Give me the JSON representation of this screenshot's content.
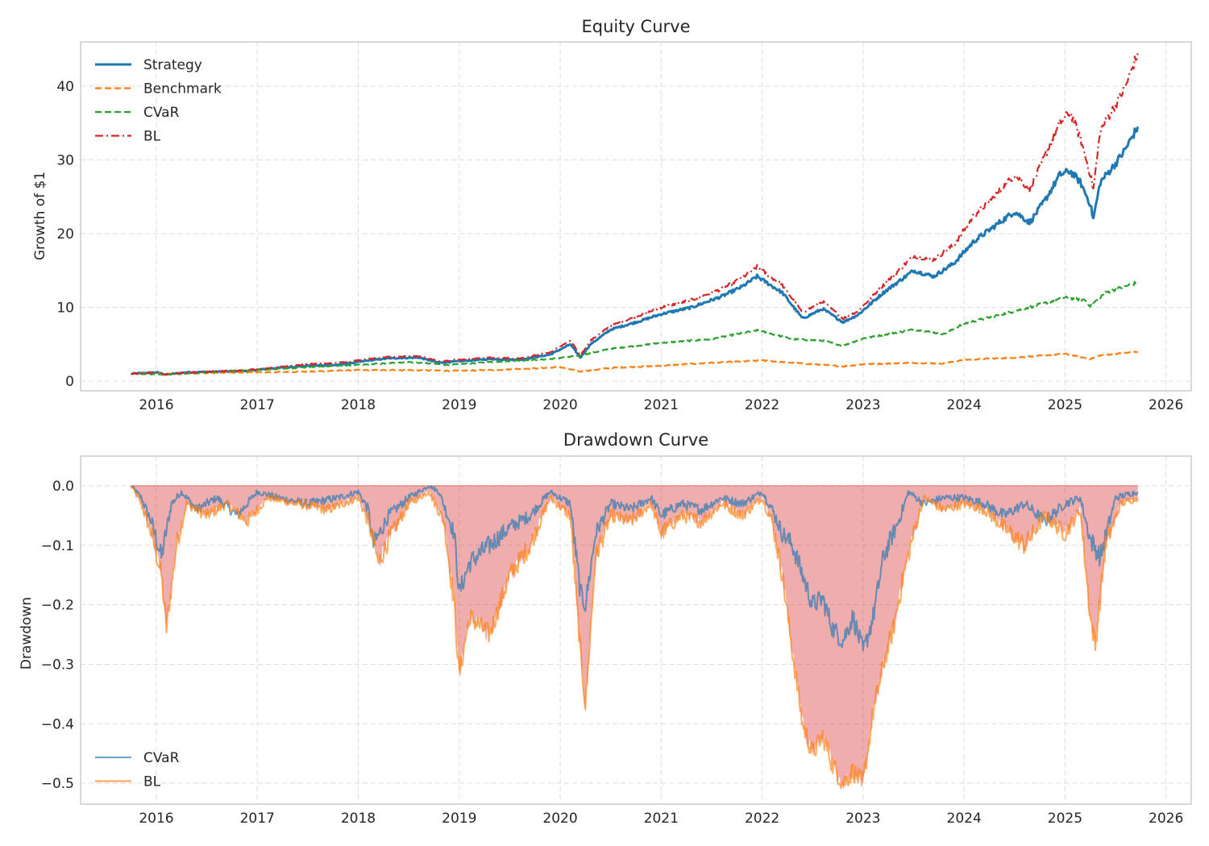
{
  "colors": {
    "strategy": "#1f77b4",
    "benchmark": "#ff7f0e",
    "cvar": "#2ca02c",
    "bl": "#d62728",
    "dd_cvar": "#1f77b4",
    "dd_bl": "#ff7f0e",
    "dd_fill": "#d62728",
    "grid": "#dddddd",
    "frame": "#cccccc"
  },
  "chart_data": [
    {
      "type": "line",
      "title": "Equity Curve",
      "xlabel": "",
      "ylabel": "Growth of $1",
      "xlim": [
        2015.25,
        2026.25
      ],
      "ylim": [
        -1.3,
        46
      ],
      "xticks": [
        2016,
        2017,
        2018,
        2019,
        2020,
        2021,
        2022,
        2023,
        2024,
        2025,
        2026
      ],
      "xtick_labels": [
        "2016",
        "2017",
        "2018",
        "2019",
        "2020",
        "2021",
        "2022",
        "2023",
        "2024",
        "2025",
        "2026"
      ],
      "yticks": [
        0,
        10,
        20,
        30,
        40
      ],
      "ytick_labels": [
        "0",
        "10",
        "20",
        "30",
        "40"
      ],
      "grid": true,
      "legend": "upper left",
      "series": [
        {
          "name": "Strategy",
          "style": "solid",
          "x": [
            2015.75,
            2016.0,
            2016.1,
            2016.3,
            2016.6,
            2016.9,
            2017.2,
            2017.5,
            2017.8,
            2018.0,
            2018.1,
            2018.3,
            2018.6,
            2018.8,
            2019.0,
            2019.3,
            2019.6,
            2019.9,
            2020.1,
            2020.2,
            2020.3,
            2020.5,
            2020.8,
            2021.0,
            2021.3,
            2021.6,
            2021.8,
            2021.95,
            2022.2,
            2022.4,
            2022.6,
            2022.8,
            2022.95,
            2023.2,
            2023.5,
            2023.7,
            2023.9,
            2024.1,
            2024.3,
            2024.5,
            2024.65,
            2024.8,
            2024.95,
            2025.05,
            2025.15,
            2025.25,
            2025.28,
            2025.35,
            2025.5,
            2025.6,
            2025.72
          ],
          "y": [
            1.0,
            1.2,
            0.9,
            1.2,
            1.3,
            1.4,
            1.8,
            2.1,
            2.2,
            2.6,
            2.8,
            3.1,
            3.2,
            2.5,
            2.7,
            3.0,
            2.9,
            3.6,
            5.0,
            3.2,
            5.0,
            7.0,
            8.2,
            9.1,
            10.0,
            11.5,
            12.8,
            14.2,
            12.0,
            8.5,
            9.8,
            8.0,
            9.0,
            12.0,
            15.0,
            14.2,
            16.0,
            19.0,
            21.0,
            23.0,
            21.5,
            24.5,
            28.0,
            28.5,
            27.0,
            24.0,
            22.0,
            27.0,
            29.5,
            31.5,
            34.5
          ]
        },
        {
          "name": "Benchmark",
          "style": "dashed",
          "x": [
            2015.75,
            2016.1,
            2016.5,
            2017.0,
            2017.5,
            2018.0,
            2018.5,
            2019.0,
            2019.5,
            2020.0,
            2020.2,
            2020.5,
            2021.0,
            2021.5,
            2022.0,
            2022.5,
            2022.8,
            2023.0,
            2023.5,
            2023.8,
            2024.0,
            2024.5,
            2025.0,
            2025.25,
            2025.35,
            2025.72
          ],
          "y": [
            1.0,
            1.0,
            1.1,
            1.2,
            1.3,
            1.5,
            1.5,
            1.4,
            1.6,
            1.9,
            1.3,
            1.8,
            2.1,
            2.5,
            2.8,
            2.3,
            2.0,
            2.3,
            2.5,
            2.4,
            2.9,
            3.2,
            3.7,
            3.0,
            3.5,
            4.0
          ]
        },
        {
          "name": "CVaR",
          "style": "dashed",
          "x": [
            2015.75,
            2016.1,
            2016.5,
            2017.0,
            2017.5,
            2018.0,
            2018.5,
            2018.9,
            2019.3,
            2019.9,
            2020.2,
            2020.5,
            2021.0,
            2021.5,
            2021.95,
            2022.3,
            2022.6,
            2022.8,
            2023.0,
            2023.5,
            2023.8,
            2024.0,
            2024.5,
            2025.0,
            2025.2,
            2025.25,
            2025.4,
            2025.72
          ],
          "y": [
            1.0,
            0.9,
            1.2,
            1.5,
            1.9,
            2.2,
            2.6,
            2.2,
            2.6,
            3.0,
            3.5,
            4.4,
            5.2,
            5.7,
            6.9,
            5.7,
            5.5,
            4.8,
            5.8,
            7.0,
            6.4,
            7.8,
            9.5,
            11.3,
            11.0,
            10.2,
            12.0,
            13.4
          ]
        },
        {
          "name": "BL",
          "style": "dashdot",
          "x": [
            2015.75,
            2016.0,
            2016.1,
            2016.3,
            2016.6,
            2016.9,
            2017.2,
            2017.5,
            2017.8,
            2018.0,
            2018.1,
            2018.3,
            2018.6,
            2018.8,
            2019.0,
            2019.3,
            2019.6,
            2019.9,
            2020.1,
            2020.2,
            2020.3,
            2020.5,
            2020.8,
            2021.0,
            2021.3,
            2021.6,
            2021.8,
            2021.95,
            2022.2,
            2022.4,
            2022.6,
            2022.8,
            2022.95,
            2023.2,
            2023.5,
            2023.7,
            2023.9,
            2024.1,
            2024.3,
            2024.5,
            2024.65,
            2024.8,
            2024.95,
            2025.05,
            2025.15,
            2025.25,
            2025.28,
            2025.35,
            2025.5,
            2025.6,
            2025.72
          ],
          "y": [
            1.0,
            1.2,
            0.9,
            1.2,
            1.3,
            1.5,
            1.9,
            2.3,
            2.5,
            2.8,
            3.0,
            3.3,
            3.4,
            2.7,
            2.9,
            3.2,
            3.1,
            3.9,
            5.5,
            3.5,
            5.5,
            7.5,
            9.0,
            10.0,
            11.0,
            12.5,
            14.0,
            15.5,
            13.0,
            9.3,
            10.8,
            8.5,
            9.5,
            13.0,
            17.0,
            16.5,
            18.5,
            22.5,
            25.0,
            28.0,
            26.0,
            30.5,
            35.0,
            36.5,
            33.0,
            28.0,
            26.0,
            34.0,
            37.5,
            40.0,
            44.5
          ]
        }
      ]
    },
    {
      "type": "area",
      "title": "Drawdown Curve",
      "xlabel": "",
      "ylabel": "Drawdown",
      "xlim": [
        2015.25,
        2026.25
      ],
      "ylim": [
        -0.535,
        0.05
      ],
      "xticks": [
        2016,
        2017,
        2018,
        2019,
        2020,
        2021,
        2022,
        2023,
        2024,
        2025,
        2026
      ],
      "xtick_labels": [
        "2016",
        "2017",
        "2018",
        "2019",
        "2020",
        "2021",
        "2022",
        "2023",
        "2024",
        "2025",
        "2026"
      ],
      "yticks": [
        0.0,
        -0.1,
        -0.2,
        -0.3,
        -0.4,
        -0.5
      ],
      "ytick_labels": [
        "0.0",
        "−0.1",
        "−0.2",
        "−0.3",
        "−0.4",
        "−0.5"
      ],
      "grid": true,
      "legend": "lower left",
      "series": [
        {
          "name": "CVaR",
          "x": [
            2015.75,
            2015.85,
            2015.95,
            2016.05,
            2016.15,
            2016.25,
            2016.4,
            2016.6,
            2016.8,
            2017.0,
            2017.2,
            2017.5,
            2017.8,
            2018.0,
            2018.1,
            2018.15,
            2018.3,
            2018.5,
            2018.7,
            2018.8,
            2018.95,
            2019.0,
            2019.1,
            2019.3,
            2019.5,
            2019.7,
            2019.9,
            2020.1,
            2020.2,
            2020.25,
            2020.35,
            2020.5,
            2020.7,
            2020.9,
            2021.0,
            2021.2,
            2021.4,
            2021.6,
            2021.8,
            2022.0,
            2022.1,
            2022.2,
            2022.3,
            2022.4,
            2022.5,
            2022.6,
            2022.7,
            2022.8,
            2022.9,
            2023.0,
            2023.1,
            2023.2,
            2023.35,
            2023.45,
            2023.6,
            2023.8,
            2024.0,
            2024.2,
            2024.4,
            2024.6,
            2024.8,
            2025.0,
            2025.15,
            2025.25,
            2025.35,
            2025.5,
            2025.72
          ],
          "y": [
            0.0,
            -0.02,
            -0.06,
            -0.12,
            -0.03,
            -0.01,
            -0.04,
            -0.02,
            -0.05,
            -0.01,
            -0.02,
            -0.03,
            -0.02,
            -0.01,
            -0.04,
            -0.1,
            -0.05,
            -0.02,
            0.0,
            -0.01,
            -0.08,
            -0.18,
            -0.13,
            -0.1,
            -0.07,
            -0.05,
            -0.01,
            -0.03,
            -0.18,
            -0.2,
            -0.08,
            -0.03,
            -0.04,
            -0.02,
            -0.05,
            -0.03,
            -0.04,
            -0.02,
            -0.03,
            -0.01,
            -0.04,
            -0.08,
            -0.1,
            -0.15,
            -0.2,
            -0.19,
            -0.24,
            -0.26,
            -0.22,
            -0.28,
            -0.22,
            -0.12,
            -0.06,
            -0.01,
            -0.03,
            -0.02,
            -0.02,
            -0.03,
            -0.05,
            -0.03,
            -0.06,
            -0.03,
            -0.02,
            -0.09,
            -0.12,
            -0.02,
            -0.01
          ]
        },
        {
          "name": "BL",
          "x": [
            2015.75,
            2015.85,
            2015.95,
            2016.05,
            2016.1,
            2016.2,
            2016.3,
            2016.5,
            2016.7,
            2016.9,
            2017.1,
            2017.4,
            2017.7,
            2018.0,
            2018.1,
            2018.2,
            2018.3,
            2018.5,
            2018.7,
            2018.85,
            2018.95,
            2019.0,
            2019.1,
            2019.3,
            2019.4,
            2019.5,
            2019.7,
            2019.9,
            2020.1,
            2020.2,
            2020.25,
            2020.35,
            2020.5,
            2020.7,
            2020.9,
            2021.0,
            2021.2,
            2021.4,
            2021.6,
            2021.8,
            2022.0,
            2022.1,
            2022.2,
            2022.3,
            2022.4,
            2022.5,
            2022.6,
            2022.7,
            2022.8,
            2022.9,
            2023.0,
            2023.1,
            2023.2,
            2023.3,
            2023.4,
            2023.5,
            2023.6,
            2023.8,
            2024.0,
            2024.2,
            2024.4,
            2024.6,
            2024.8,
            2025.0,
            2025.15,
            2025.25,
            2025.3,
            2025.4,
            2025.55,
            2025.72
          ],
          "y": [
            0.0,
            -0.03,
            -0.08,
            -0.15,
            -0.24,
            -0.1,
            -0.03,
            -0.05,
            -0.03,
            -0.06,
            -0.02,
            -0.03,
            -0.04,
            -0.02,
            -0.06,
            -0.13,
            -0.09,
            -0.03,
            -0.01,
            -0.06,
            -0.2,
            -0.32,
            -0.22,
            -0.25,
            -0.2,
            -0.15,
            -0.1,
            -0.02,
            -0.05,
            -0.28,
            -0.37,
            -0.12,
            -0.05,
            -0.06,
            -0.03,
            -0.08,
            -0.05,
            -0.06,
            -0.03,
            -0.05,
            -0.02,
            -0.06,
            -0.15,
            -0.28,
            -0.4,
            -0.45,
            -0.42,
            -0.47,
            -0.5,
            -0.48,
            -0.5,
            -0.38,
            -0.3,
            -0.24,
            -0.15,
            -0.08,
            -0.02,
            -0.04,
            -0.03,
            -0.04,
            -0.07,
            -0.1,
            -0.05,
            -0.08,
            -0.04,
            -0.22,
            -0.27,
            -0.1,
            -0.03,
            -0.02
          ]
        }
      ]
    }
  ]
}
